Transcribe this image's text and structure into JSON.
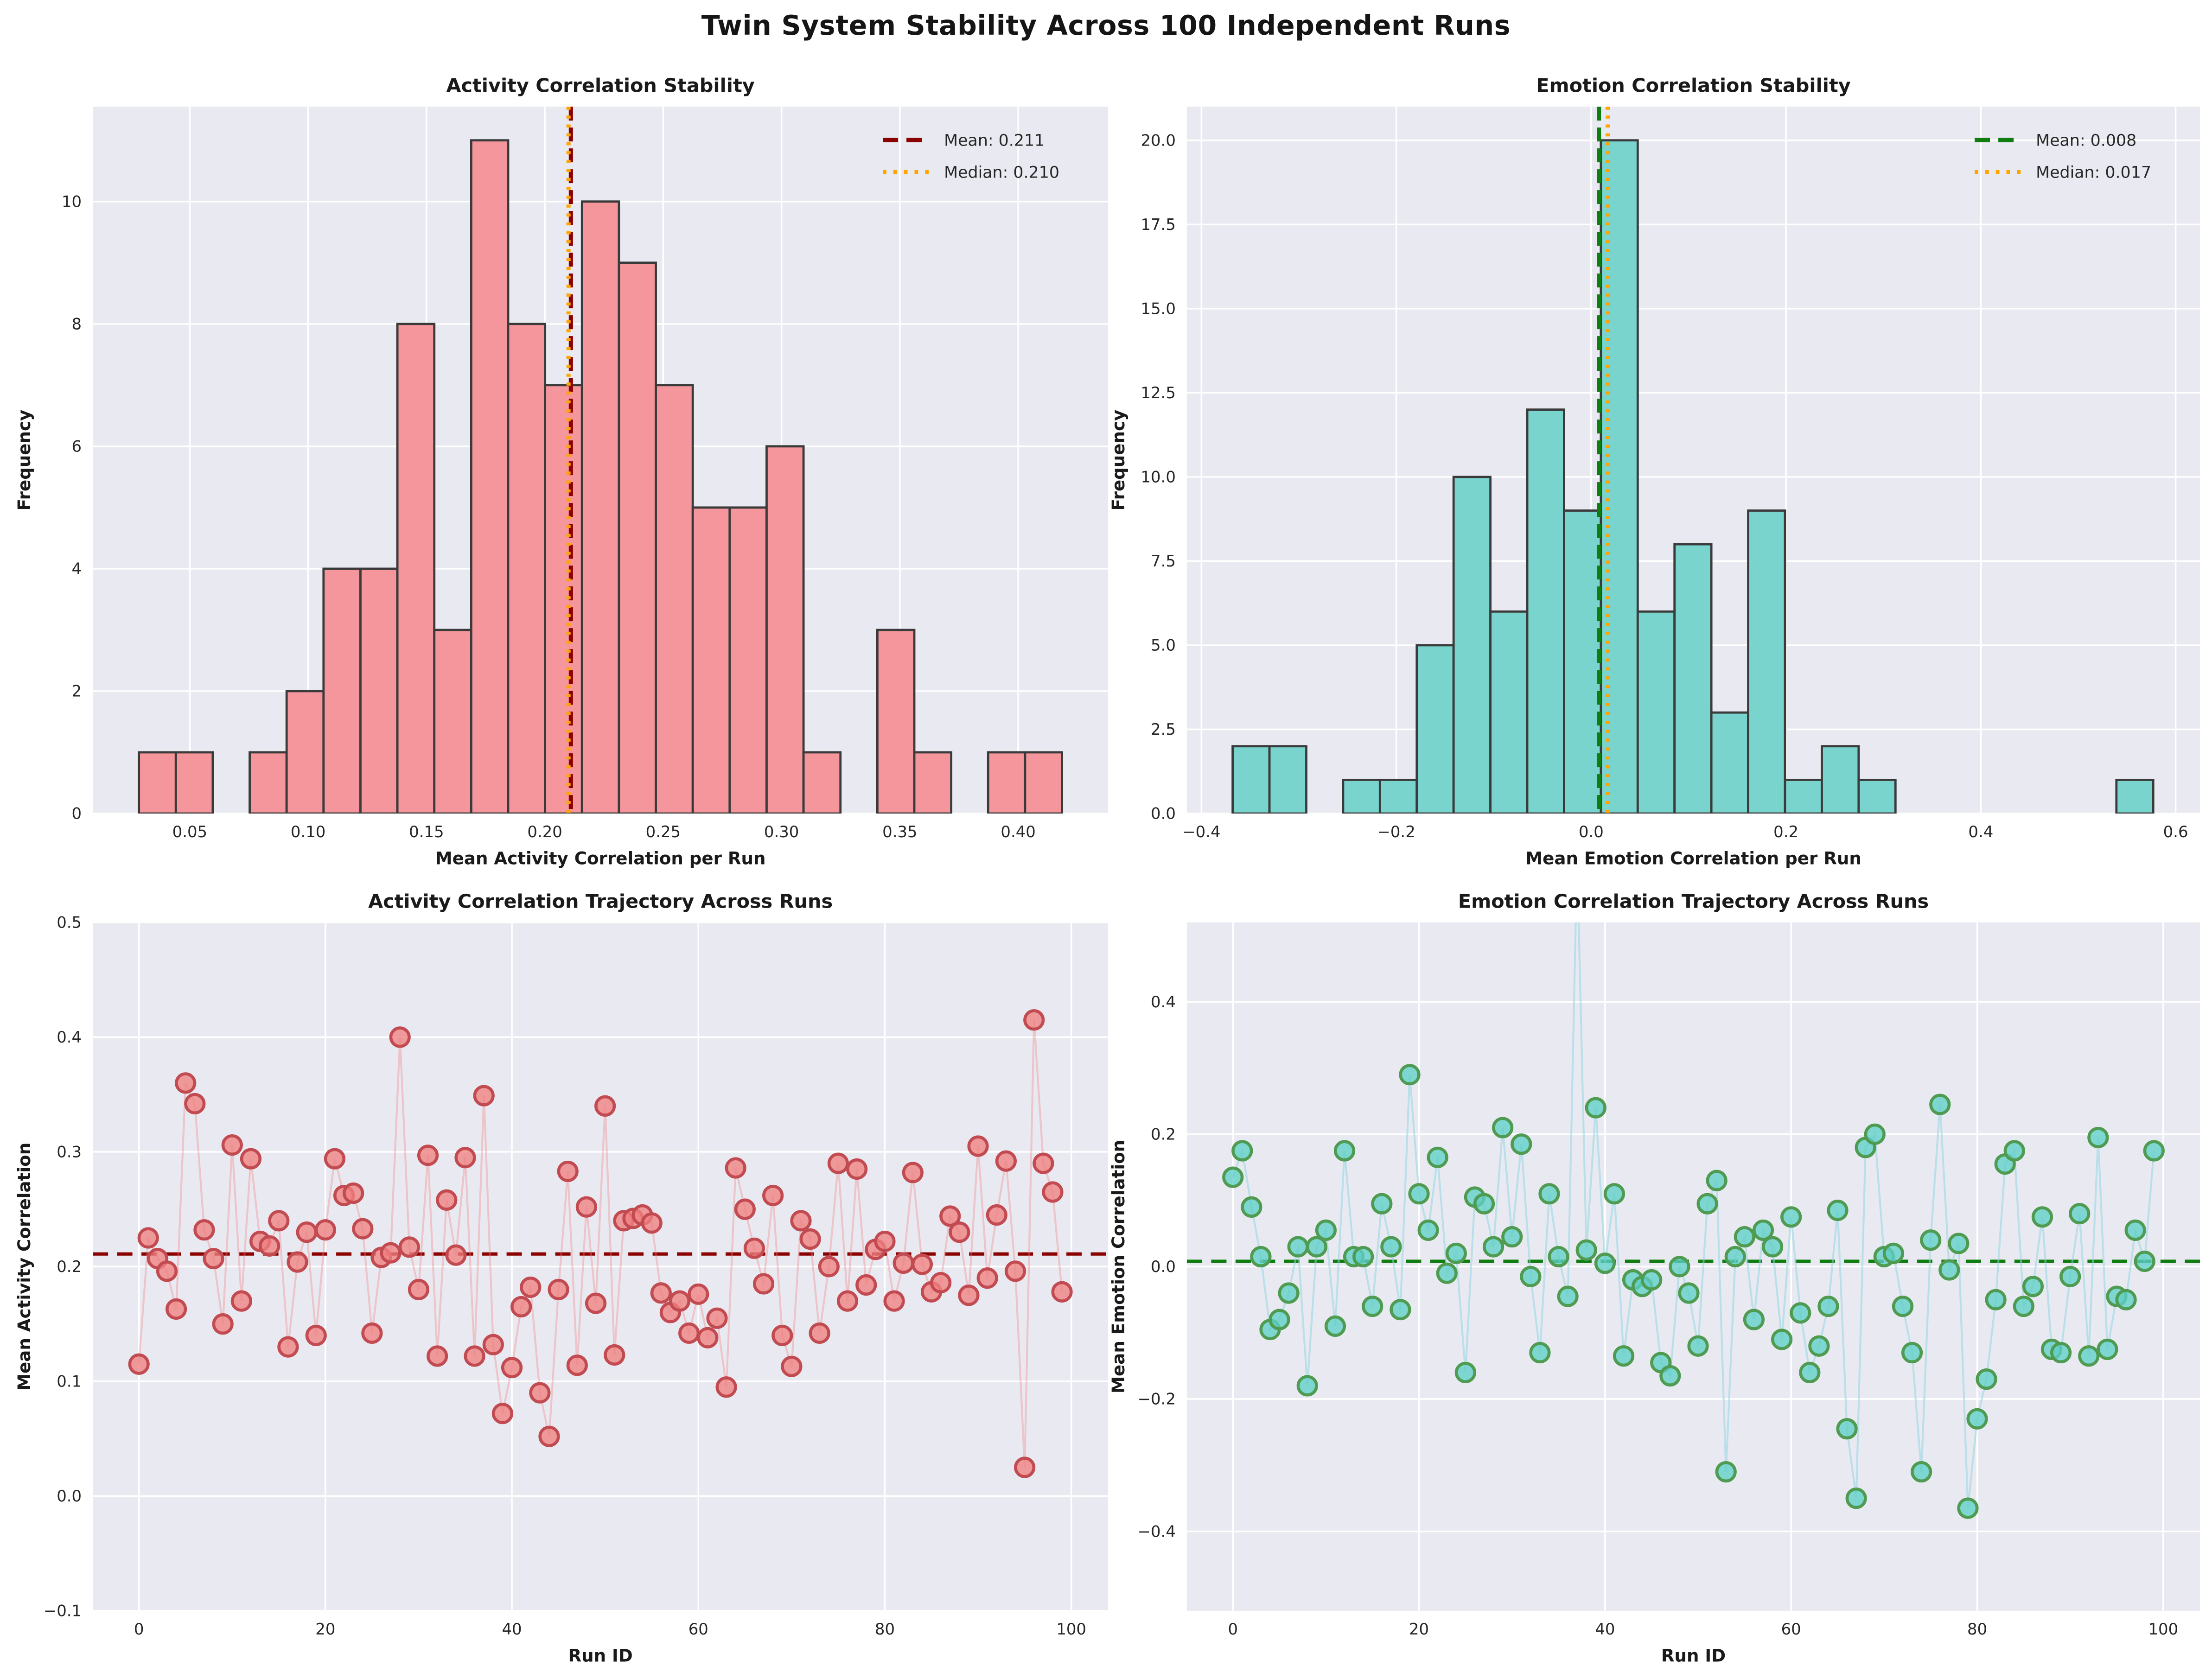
{
  "suptitle": "Twin System Stability Across 100 Independent Runs",
  "colors": {
    "figure_bg": "#ffffff",
    "axes_bg": "#e9eaf1",
    "grid": "#ffffff",
    "text": "#262626",
    "label_text": "#1a1a1a",
    "darkred": "#8b0000",
    "orange": "#ffa500",
    "green": "#0f7d0f"
  },
  "chart_data": [
    {
      "id": "activity-histogram",
      "type": "bar",
      "title": "Activity Correlation Stability",
      "xlabel": "Mean Activity Correlation per Run",
      "ylabel": "Frequency",
      "bar_color": "#f4969b",
      "bar_edge": "#3a3a3a",
      "bin_edges": [
        0.0285,
        0.0441,
        0.0597,
        0.0753,
        0.0909,
        0.1065,
        0.1221,
        0.1377,
        0.1533,
        0.1689,
        0.1845,
        0.2001,
        0.2157,
        0.2313,
        0.2469,
        0.2625,
        0.2781,
        0.2937,
        0.3093,
        0.3249,
        0.3405,
        0.3561,
        0.3717,
        0.3873,
        0.4029,
        0.4185
      ],
      "counts": [
        1,
        1,
        0,
        1,
        2,
        4,
        4,
        8,
        3,
        11,
        8,
        7,
        10,
        9,
        7,
        5,
        5,
        6,
        1,
        0,
        3,
        1,
        0,
        1,
        1
      ],
      "xlim": [
        0.009,
        0.438
      ],
      "ylim": [
        0,
        11.55
      ],
      "xticks": [
        0.05,
        0.1,
        0.15,
        0.2,
        0.25,
        0.3,
        0.35,
        0.4
      ],
      "xtick_labels": [
        "0.05",
        "0.10",
        "0.15",
        "0.20",
        "0.25",
        "0.30",
        "0.35",
        "0.40"
      ],
      "yticks": [
        0,
        2,
        4,
        6,
        8,
        10
      ],
      "ytick_labels": [
        "0",
        "2",
        "4",
        "6",
        "8",
        "10"
      ],
      "vlines": [
        {
          "value": 0.211,
          "color": "#8b0000",
          "style": "dashed",
          "label": "Mean: 0.211"
        },
        {
          "value": 0.21,
          "color": "#ffa500",
          "style": "dotted",
          "label": "Median: 0.210"
        }
      ],
      "legend_position": "upper-right"
    },
    {
      "id": "emotion-histogram",
      "type": "bar",
      "title": "Emotion Correlation Stability",
      "xlabel": "Mean Emotion Correlation per Run",
      "ylabel": "Frequency",
      "bar_color": "#7ad4ce",
      "bar_edge": "#3a3a3a",
      "bin_edges": [
        -0.368,
        -0.3302,
        -0.2924,
        -0.2546,
        -0.2168,
        -0.179,
        -0.1412,
        -0.1034,
        -0.0656,
        -0.0278,
        0.01,
        0.0478,
        0.0856,
        0.1234,
        0.1612,
        0.199,
        0.2368,
        0.2746,
        0.3124,
        0.3502,
        0.388,
        0.4258,
        0.4636,
        0.5014,
        0.5392,
        0.577
      ],
      "counts": [
        2,
        2,
        0,
        1,
        1,
        5,
        10,
        6,
        12,
        9,
        20,
        6,
        8,
        3,
        9,
        1,
        2,
        1,
        0,
        0,
        0,
        0,
        0,
        0,
        1
      ],
      "xlim": [
        -0.415,
        0.625
      ],
      "ylim": [
        0,
        21
      ],
      "xticks": [
        -0.4,
        -0.2,
        0.0,
        0.2,
        0.4,
        0.6
      ],
      "xtick_labels": [
        "−0.4",
        "−0.2",
        "0.0",
        "0.2",
        "0.4",
        "0.6"
      ],
      "yticks": [
        0,
        2.5,
        5,
        7.5,
        10,
        12.5,
        15,
        17.5,
        20
      ],
      "ytick_labels": [
        "0.0",
        "2.5",
        "5.0",
        "7.5",
        "10.0",
        "12.5",
        "15.0",
        "17.5",
        "20.0"
      ],
      "vlines": [
        {
          "value": 0.008,
          "color": "#0f7d0f",
          "style": "dashed",
          "label": "Mean: 0.008"
        },
        {
          "value": 0.017,
          "color": "#ffa500",
          "style": "dotted",
          "label": "Median: 0.017"
        }
      ],
      "legend_position": "upper-right"
    },
    {
      "id": "activity-trajectory",
      "type": "line",
      "title": "Activity Correlation Trajectory Across Runs",
      "xlabel": "Run ID",
      "ylabel": "Mean Activity Correlation",
      "marker_color": "#f08080",
      "marker_edge": "#c24b52",
      "line_color": "rgba(240,128,128,0.35)",
      "x_is_index": true,
      "values": [
        0.115,
        0.225,
        0.207,
        0.196,
        0.163,
        0.36,
        0.342,
        0.232,
        0.207,
        0.15,
        0.306,
        0.17,
        0.294,
        0.222,
        0.218,
        0.24,
        0.13,
        0.204,
        0.23,
        0.14,
        0.232,
        0.294,
        0.262,
        0.264,
        0.233,
        0.142,
        0.208,
        0.212,
        0.4,
        0.217,
        0.18,
        0.297,
        0.122,
        0.258,
        0.21,
        0.295,
        0.122,
        0.349,
        0.132,
        0.072,
        0.112,
        0.165,
        0.182,
        0.09,
        0.052,
        0.18,
        0.283,
        0.114,
        0.252,
        0.168,
        0.34,
        0.123,
        0.24,
        0.242,
        0.245,
        0.238,
        0.177,
        0.16,
        0.17,
        0.142,
        0.176,
        0.138,
        0.155,
        0.095,
        0.286,
        0.25,
        0.216,
        0.185,
        0.262,
        0.14,
        0.113,
        0.24,
        0.224,
        0.142,
        0.2,
        0.29,
        0.17,
        0.285,
        0.184,
        0.215,
        0.222,
        0.17,
        0.203,
        0.282,
        0.202,
        0.178,
        0.186,
        0.244,
        0.23,
        0.175,
        0.305,
        0.19,
        0.245,
        0.292,
        0.196,
        0.025,
        0.415,
        0.29,
        0.265,
        0.178
      ],
      "xlim": [
        -4.95,
        103.95
      ],
      "ylim": [
        -0.1,
        0.5
      ],
      "xticks": [
        0,
        20,
        40,
        60,
        80,
        100
      ],
      "xtick_labels": [
        "0",
        "20",
        "40",
        "60",
        "80",
        "100"
      ],
      "yticks": [
        -0.1,
        0.0,
        0.1,
        0.2,
        0.3,
        0.4,
        0.5
      ],
      "ytick_labels": [
        "−0.1",
        "0.0",
        "0.1",
        "0.2",
        "0.3",
        "0.4",
        "0.5"
      ],
      "hline": {
        "value": 0.211,
        "color": "#8b0000",
        "style": "dashed"
      }
    },
    {
      "id": "emotion-trajectory",
      "type": "line",
      "title": "Emotion Correlation Trajectory Across Runs",
      "xlabel": "Run ID",
      "ylabel": "Mean Emotion Correlation",
      "marker_color": "#5fd0c7",
      "marker_edge": "#4e9b51",
      "line_color": "rgba(150,214,225,0.55)",
      "x_is_index": true,
      "values": [
        0.135,
        0.175,
        0.09,
        0.015,
        -0.095,
        -0.08,
        -0.04,
        0.03,
        -0.18,
        0.03,
        0.055,
        -0.09,
        0.175,
        0.015,
        0.015,
        -0.06,
        0.095,
        0.03,
        -0.065,
        0.29,
        0.11,
        0.055,
        0.165,
        -0.01,
        0.02,
        -0.16,
        0.105,
        0.095,
        0.03,
        0.21,
        0.045,
        0.185,
        -0.015,
        -0.13,
        0.11,
        0.015,
        -0.045,
        0.62,
        0.025,
        0.24,
        0.005,
        0.11,
        -0.135,
        -0.02,
        -0.03,
        -0.02,
        -0.145,
        -0.165,
        0.0,
        -0.04,
        -0.12,
        0.095,
        0.13,
        -0.31,
        0.015,
        0.045,
        -0.08,
        0.055,
        0.03,
        -0.11,
        0.075,
        -0.07,
        -0.16,
        -0.12,
        -0.06,
        0.085,
        -0.245,
        -0.35,
        0.18,
        0.2,
        0.015,
        0.02,
        -0.06,
        -0.13,
        -0.31,
        0.04,
        0.245,
        -0.005,
        0.035,
        -0.365,
        -0.23,
        -0.17,
        -0.05,
        0.155,
        0.175,
        -0.06,
        -0.03,
        0.075,
        -0.125,
        -0.13,
        -0.015,
        0.08,
        -0.135,
        0.195,
        -0.125,
        -0.045,
        -0.05,
        0.055,
        0.008,
        0.175
      ],
      "xlim": [
        -4.95,
        103.95
      ],
      "ylim": [
        -0.52,
        0.52
      ],
      "xticks": [
        0,
        20,
        40,
        60,
        80,
        100
      ],
      "xtick_labels": [
        "0",
        "20",
        "40",
        "60",
        "80",
        "100"
      ],
      "yticks": [
        -0.4,
        -0.2,
        0.0,
        0.2,
        0.4
      ],
      "ytick_labels": [
        "−0.4",
        "−0.2",
        "0.0",
        "0.2",
        "0.4"
      ],
      "hline": {
        "value": 0.008,
        "color": "#0f7d0f",
        "style": "dashed"
      }
    }
  ]
}
